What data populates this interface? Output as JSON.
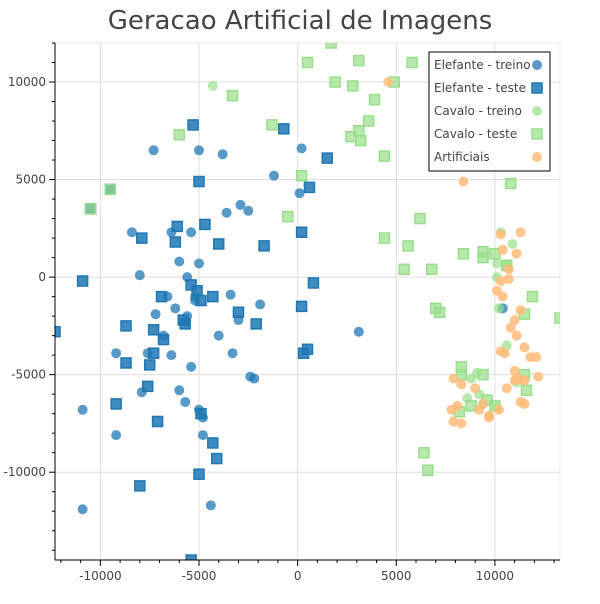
{
  "chart_data": {
    "type": "scatter",
    "title": "Geracao Artificial de Imagens",
    "xlabel": "",
    "ylabel": "",
    "xlim": [
      -12300,
      13300
    ],
    "ylim": [
      -14500,
      12000
    ],
    "x_ticks": [
      -10000,
      -5000,
      0,
      5000,
      10000
    ],
    "y_ticks": [
      -10000,
      -5000,
      0,
      5000,
      10000
    ],
    "x_tick_labels": [
      "-10000",
      "-5000",
      "0",
      "5000",
      "10000"
    ],
    "y_tick_labels": [
      "-10000",
      "-5000",
      "0",
      "5000",
      "10000"
    ],
    "grid": true,
    "legend_position": "top-right",
    "series": [
      {
        "name": "Elefante - treino",
        "marker": "circle",
        "color": "#1f77b4",
        "alpha": 0.75,
        "points": [
          [
            -7300,
            6500
          ],
          [
            -5000,
            6500
          ],
          [
            -3800,
            6300
          ],
          [
            -1200,
            5200
          ],
          [
            200,
            6600
          ],
          [
            100,
            4300
          ],
          [
            -8400,
            2300
          ],
          [
            -6400,
            2300
          ],
          [
            -5400,
            2300
          ],
          [
            -3600,
            3300
          ],
          [
            -2900,
            3700
          ],
          [
            -2500,
            3400
          ],
          [
            -6000,
            800
          ],
          [
            -5000,
            700
          ],
          [
            -5600,
            0
          ],
          [
            -8000,
            100
          ],
          [
            -6600,
            -1000
          ],
          [
            -5200,
            -1000
          ],
          [
            -7200,
            -1900
          ],
          [
            -6200,
            -1600
          ],
          [
            -5600,
            -2000
          ],
          [
            -3400,
            -900
          ],
          [
            -3000,
            -2200
          ],
          [
            -1900,
            -1400
          ],
          [
            -9200,
            -3900
          ],
          [
            -7600,
            -3900
          ],
          [
            -6400,
            -4000
          ],
          [
            -5400,
            -4600
          ],
          [
            -3300,
            -3900
          ],
          [
            -2400,
            -5100
          ],
          [
            -7900,
            -5900
          ],
          [
            -6000,
            -5800
          ],
          [
            -5700,
            -6400
          ],
          [
            -5000,
            -6800
          ],
          [
            -4800,
            -7200
          ],
          [
            -4800,
            -8100
          ],
          [
            -9200,
            -8100
          ],
          [
            -10900,
            -6800
          ],
          [
            -4400,
            -11700
          ],
          [
            -10900,
            -11900
          ],
          [
            3100,
            -2800
          ],
          [
            10400,
            -1600
          ],
          [
            -5200,
            -1200
          ],
          [
            -4000,
            -3000
          ],
          [
            -6800,
            -3000
          ],
          [
            -2200,
            -5200
          ]
        ]
      },
      {
        "name": "Elefante - teste",
        "marker": "square",
        "color": "#1f77b4",
        "alpha": 0.85,
        "points": [
          [
            -5300,
            7800
          ],
          [
            -700,
            7600
          ],
          [
            1500,
            6100
          ],
          [
            -5000,
            4900
          ],
          [
            600,
            4600
          ],
          [
            -9500,
            4500
          ],
          [
            -10500,
            3500
          ],
          [
            -6100,
            2600
          ],
          [
            -6200,
            1800
          ],
          [
            -4700,
            2700
          ],
          [
            -4000,
            1700
          ],
          [
            -1700,
            1600
          ],
          [
            200,
            2300
          ],
          [
            -7900,
            2000
          ],
          [
            -10900,
            -200
          ],
          [
            -5400,
            -400
          ],
          [
            -5100,
            -700
          ],
          [
            -6900,
            -1000
          ],
          [
            -4900,
            -1200
          ],
          [
            -4300,
            -1000
          ],
          [
            -3000,
            -1800
          ],
          [
            -2100,
            -2400
          ],
          [
            200,
            -1500
          ],
          [
            800,
            -300
          ],
          [
            -12300,
            -2800
          ],
          [
            -8700,
            -2500
          ],
          [
            -6800,
            -3200
          ],
          [
            -5700,
            -2400
          ],
          [
            -5800,
            -2200
          ],
          [
            300,
            -3900
          ],
          [
            500,
            -3700
          ],
          [
            -8700,
            -4400
          ],
          [
            -7500,
            -4500
          ],
          [
            -7300,
            -3900
          ],
          [
            -7600,
            -5600
          ],
          [
            -9200,
            -6500
          ],
          [
            -4900,
            -7000
          ],
          [
            -4300,
            -8500
          ],
          [
            -7100,
            -7400
          ],
          [
            -5000,
            -10100
          ],
          [
            -8000,
            -10700
          ],
          [
            -5400,
            -14500
          ],
          [
            -4100,
            -9300
          ],
          [
            -7300,
            -2700
          ]
        ]
      },
      {
        "name": "Cavalo - treino",
        "marker": "circle",
        "color": "#98df8a",
        "alpha": 0.7,
        "points": [
          [
            -4300,
            9800
          ],
          [
            10300,
            2300
          ],
          [
            10900,
            1700
          ],
          [
            10100,
            700
          ],
          [
            10100,
            0
          ],
          [
            10200,
            -1600
          ],
          [
            10600,
            -3500
          ],
          [
            9100,
            -4900
          ],
          [
            8800,
            -5200
          ],
          [
            9200,
            -6000
          ],
          [
            8600,
            -6200
          ],
          [
            9400,
            -6500
          ],
          [
            10100,
            -6700
          ],
          [
            11100,
            -5400
          ]
        ]
      },
      {
        "name": "Cavalo - teste",
        "marker": "square",
        "color": "#98df8a",
        "alpha": 0.7,
        "points": [
          [
            1700,
            12000
          ],
          [
            3100,
            11100
          ],
          [
            500,
            11000
          ],
          [
            5800,
            11000
          ],
          [
            -3300,
            9300
          ],
          [
            1900,
            10000
          ],
          [
            2800,
            9800
          ],
          [
            3900,
            9100
          ],
          [
            4900,
            10000
          ],
          [
            -1300,
            7800
          ],
          [
            -6000,
            7300
          ],
          [
            3600,
            8000
          ],
          [
            3100,
            7500
          ],
          [
            2700,
            7200
          ],
          [
            3200,
            7000
          ],
          [
            4400,
            6200
          ],
          [
            -9500,
            4500
          ],
          [
            -10500,
            3500
          ],
          [
            10800,
            4800
          ],
          [
            200,
            5200
          ],
          [
            -500,
            3100
          ],
          [
            6200,
            3000
          ],
          [
            4400,
            2000
          ],
          [
            5600,
            1600
          ],
          [
            8400,
            1200
          ],
          [
            9400,
            1300
          ],
          [
            10000,
            1200
          ],
          [
            10600,
            600
          ],
          [
            9400,
            1000
          ],
          [
            5400,
            400
          ],
          [
            6800,
            400
          ],
          [
            10600,
            600
          ],
          [
            11900,
            -1000
          ],
          [
            7000,
            -1600
          ],
          [
            7200,
            -1800
          ],
          [
            11500,
            -1900
          ],
          [
            13300,
            -2100
          ],
          [
            8300,
            -4600
          ],
          [
            8300,
            -5000
          ],
          [
            9400,
            -5000
          ],
          [
            11500,
            -5000
          ],
          [
            11600,
            -5800
          ],
          [
            9600,
            -6300
          ],
          [
            8800,
            -6600
          ],
          [
            8200,
            -6900
          ],
          [
            10000,
            -6600
          ],
          [
            6400,
            -9000
          ],
          [
            6600,
            -9900
          ]
        ]
      },
      {
        "name": "Artificiais",
        "marker": "circle",
        "color": "#ffbb78",
        "alpha": 0.85,
        "points": [
          [
            4600,
            10000
          ],
          [
            8400,
            4900
          ],
          [
            11300,
            2300
          ],
          [
            10300,
            2200
          ],
          [
            10400,
            1400
          ],
          [
            11100,
            1200
          ],
          [
            10700,
            400
          ],
          [
            10700,
            -100
          ],
          [
            10300,
            -200
          ],
          [
            10100,
            -700
          ],
          [
            10400,
            -1000
          ],
          [
            11300,
            -1700
          ],
          [
            11000,
            -2200
          ],
          [
            10800,
            -2600
          ],
          [
            11100,
            -3000
          ],
          [
            11500,
            -3600
          ],
          [
            10300,
            -3800
          ],
          [
            10500,
            -3900
          ],
          [
            11800,
            -4100
          ],
          [
            12100,
            -4100
          ],
          [
            11000,
            -4800
          ],
          [
            7900,
            -5200
          ],
          [
            8300,
            -5500
          ],
          [
            9000,
            -5700
          ],
          [
            11000,
            -5300
          ],
          [
            11200,
            -5200
          ],
          [
            11500,
            -5300
          ],
          [
            12200,
            -5100
          ],
          [
            10600,
            -5700
          ],
          [
            8100,
            -6600
          ],
          [
            7800,
            -6800
          ],
          [
            9200,
            -6800
          ],
          [
            10200,
            -6800
          ],
          [
            11300,
            -6400
          ],
          [
            11500,
            -6500
          ],
          [
            9700,
            -7100
          ],
          [
            8300,
            -7500
          ],
          [
            9700,
            -7200
          ],
          [
            9400,
            -6500
          ],
          [
            7900,
            -7400
          ]
        ]
      }
    ]
  }
}
